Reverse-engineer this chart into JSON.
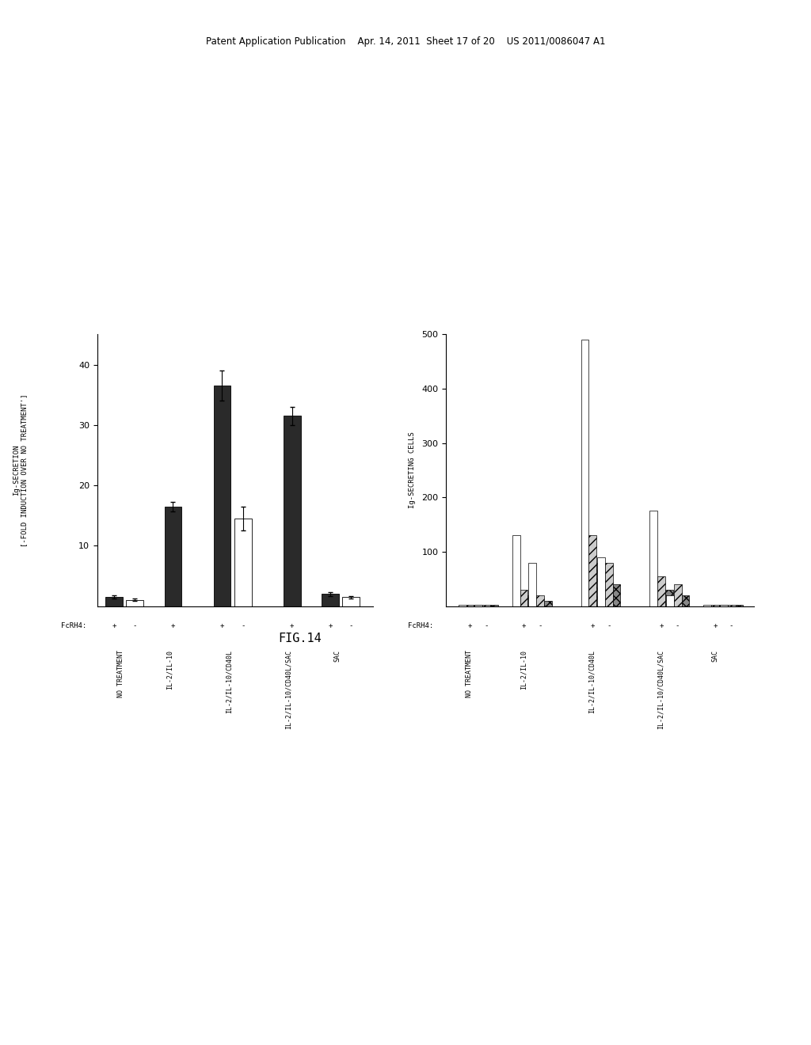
{
  "left_chart": {
    "ylabel_line1": "Ig-SECRETION",
    "ylabel_line2": "[-FOLD INDUCTION OVER NO TREATMENT']",
    "ylim": [
      0,
      45
    ],
    "yticks": [
      10,
      20,
      30,
      40
    ],
    "groups": [
      "NO TREATMENT",
      "IL-2/IL-10",
      "IL-2/IL-10/CD40L",
      "IL-2/IL-10/CD40L/SAC",
      "SAC"
    ],
    "fcrh4_plus_values": [
      1.5,
      16.5,
      36.5,
      31.5,
      2.0
    ],
    "fcrh4_minus_values": [
      1.0,
      null,
      14.5,
      null,
      1.5
    ],
    "fcrh4_plus_errors": [
      0.3,
      0.8,
      2.5,
      1.5,
      0.3
    ],
    "fcrh4_minus_errors": [
      0.2,
      null,
      2.0,
      null,
      0.2
    ],
    "bar_color_plus": "#2a2a2a",
    "bar_color_minus": "#ffffff",
    "bar_width": 0.32
  },
  "right_chart": {
    "ylabel": "Ig-SECRETING CELLS",
    "ylim": [
      0,
      500
    ],
    "yticks": [
      100,
      200,
      300,
      400,
      500
    ],
    "groups": [
      "NO TREATMENT",
      "IL-2/IL-10",
      "IL-2/IL-10/CD40L",
      "IL-2/IL-10/CD40L/SAC",
      "SAC"
    ],
    "IgG_plus": [
      2,
      130,
      490,
      175,
      2
    ],
    "IgG_minus": [
      2,
      80,
      90,
      20,
      2
    ],
    "IgM_plus": [
      2,
      30,
      130,
      55,
      2
    ],
    "IgM_minus": [
      2,
      20,
      80,
      40,
      2
    ],
    "IgA_plus": [
      2,
      20,
      80,
      30,
      2
    ],
    "IgA_minus": [
      2,
      10,
      40,
      20,
      2
    ],
    "IgG_color": "#ffffff",
    "IgM_color": "#cccccc",
    "IgA_color": "#888888",
    "IgG_hatch": "",
    "IgM_hatch": "///",
    "IgA_hatch": "xxx",
    "bar_width": 0.13
  },
  "figure": {
    "bg_color": "#ffffff",
    "header_text": "Patent Application Publication    Apr. 14, 2011  Sheet 17 of 20    US 2011/0086047 A1",
    "caption": "FIG.14"
  }
}
